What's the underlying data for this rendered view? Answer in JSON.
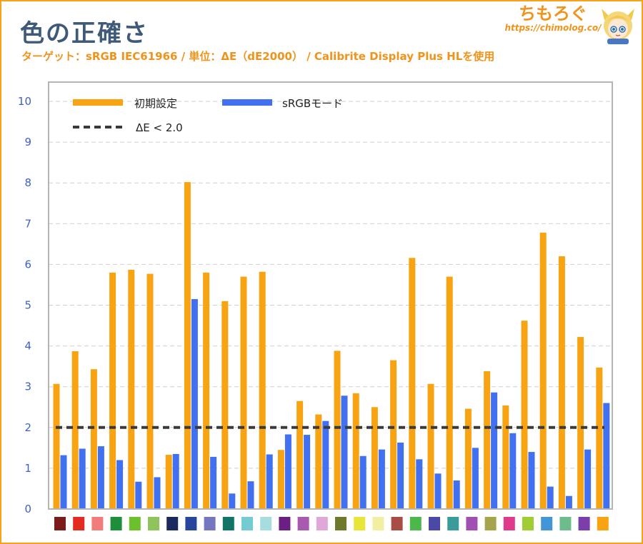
{
  "header": {
    "title": "色の正確さ",
    "subtitle": "ターゲット：sRGB IEC61966 / 単位：ΔE（dE2000） / Calibrite Display Plus HLを使用"
  },
  "brand": {
    "name": "ちもろぐ",
    "url": "https://chimolog.co/",
    "mascot_icon": "mascot-character-icon"
  },
  "chart_data": {
    "type": "bar",
    "ylim": [
      0,
      10
    ],
    "yticks": [
      0,
      1,
      2,
      3,
      4,
      5,
      6,
      7,
      8,
      9,
      10
    ],
    "grid": true,
    "legend_position": "top-left",
    "colors": {
      "default": "#f8a312",
      "srgb": "#4170f0",
      "threshold": "#3a3a3a"
    },
    "series": [
      {
        "name": "初期設定",
        "values": [
          3.07,
          3.87,
          3.43,
          5.8,
          5.87,
          5.77,
          1.33,
          8.02,
          5.8,
          5.1,
          5.7,
          5.82,
          1.45,
          2.65,
          2.32,
          3.88,
          2.84,
          2.5,
          3.65,
          6.16,
          3.07,
          5.7,
          2.46,
          3.38,
          2.54,
          4.62,
          6.78,
          6.2,
          4.22,
          3.47
        ]
      },
      {
        "name": "sRGBモード",
        "values": [
          1.32,
          1.48,
          1.54,
          1.2,
          0.67,
          0.78,
          1.35,
          5.15,
          1.28,
          0.38,
          0.68,
          1.34,
          1.83,
          1.82,
          2.16,
          2.78,
          1.3,
          1.46,
          1.63,
          1.22,
          0.87,
          0.7,
          1.5,
          2.86,
          1.86,
          1.4,
          0.55,
          0.32,
          1.46,
          2.6
        ]
      }
    ],
    "threshold": {
      "label": "ΔE < 2.0",
      "value": 2.0
    },
    "swatches": [
      "#7a1c1c",
      "#e42b22",
      "#f07c7c",
      "#1d8f3a",
      "#6cc02e",
      "#8fc45c",
      "#1a2a5e",
      "#26469e",
      "#7477c0",
      "#117466",
      "#72ccd2",
      "#a8dde0",
      "#6a1f82",
      "#a85ab0",
      "#dfa8d6",
      "#6e7a2a",
      "#e8e438",
      "#f2eea2",
      "#a84c46",
      "#4cb84a",
      "#4a4aa6",
      "#3a9c9a",
      "#a050b0",
      "#a4a44c",
      "#e03a8c",
      "#a0cc34",
      "#4296d6",
      "#6cbc8c",
      "#7c3eaa",
      "#f8a312"
    ]
  }
}
